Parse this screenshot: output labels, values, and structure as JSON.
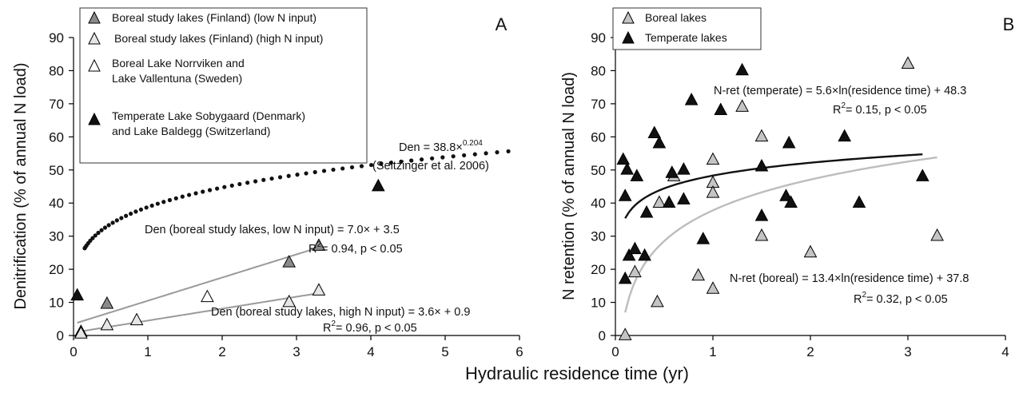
{
  "figure": {
    "shared_xlabel": "Hydraulic residence time (yr)"
  },
  "chart_data": [
    {
      "type": "scatter",
      "panel": "A",
      "ylabel": "Denitrification (% of annual N load)",
      "xlim": [
        0,
        6
      ],
      "ylim": [
        0,
        90
      ],
      "xticks": [
        "0",
        "1",
        "2",
        "3",
        "4",
        "5",
        "6"
      ],
      "yticks": [
        "0",
        "10",
        "20",
        "30",
        "40",
        "50",
        "60",
        "70",
        "80",
        "90"
      ],
      "grid": false,
      "legend_position": "top-left",
      "series": [
        {
          "name": "Boreal study lakes (Finland) (low N input)",
          "marker": "triangle",
          "color": "#8a8a8a",
          "points": [
            [
              0.1,
              1
            ],
            [
              0.45,
              9.5
            ],
            [
              2.9,
              22
            ],
            [
              3.3,
              27
            ]
          ]
        },
        {
          "name": "Boreal study lakes (Finland) (high N input)",
          "marker": "triangle",
          "color": "#e6e6e6",
          "points": [
            [
              0.1,
              0.5
            ],
            [
              0.45,
              3
            ],
            [
              0.85,
              4.5
            ],
            [
              2.9,
              10
            ],
            [
              3.3,
              13.5
            ]
          ]
        },
        {
          "name": "Boreal Lake Norrviken and Lake Vallentuna (Sweden)",
          "marker": "triangle",
          "color": "#ffffff",
          "points": [
            [
              1.8,
              11.5
            ]
          ]
        },
        {
          "name": "Temperate Lake Sobygaard (Denmark) and Lake Baldegg (Switzerland)",
          "marker": "triangle",
          "color": "#111111",
          "points": [
            [
              0.05,
              12
            ],
            [
              4.1,
              45
            ]
          ]
        }
      ],
      "fits": [
        {
          "label": "Den (boreal study lakes, low N input) = 7.0× + 3.5",
          "stats": "= 0.94, p < 0.05",
          "type": "linear",
          "a": 7.0,
          "b": 3.5,
          "xrange": [
            0.05,
            3.3
          ],
          "color": "#9a9a9a"
        },
        {
          "label": "Den (boreal study lakes, high N input) = 3.6× + 0.9",
          "stats": "= 0.96, p < 0.05",
          "type": "linear",
          "a": 3.6,
          "b": 0.9,
          "xrange": [
            0.05,
            3.3
          ],
          "color": "#9a9a9a"
        },
        {
          "label": "Den = 38.8×",
          "exponent": "0.204",
          "citation": "(Seitzinger et al. 2006)",
          "type": "power",
          "a": 38.8,
          "b": 0.204,
          "xrange": [
            0.15,
            5.85
          ],
          "color": "#111111"
        }
      ],
      "r2_prefix": "R",
      "r2_sup": "2"
    },
    {
      "type": "scatter",
      "panel": "B",
      "ylabel": "N retention (% of annual N load)",
      "xlim": [
        0,
        4
      ],
      "ylim": [
        0,
        90
      ],
      "xticks": [
        "0",
        "1",
        "2",
        "3",
        "4"
      ],
      "yticks": [
        "0",
        "10",
        "20",
        "30",
        "40",
        "50",
        "60",
        "70",
        "80",
        "90"
      ],
      "grid": false,
      "legend_position": "top-left",
      "series": [
        {
          "name": "Boreal lakes",
          "marker": "triangle",
          "color": "#c4c4c4",
          "points": [
            [
              0.1,
              0
            ],
            [
              0.2,
              19
            ],
            [
              0.43,
              10
            ],
            [
              0.45,
              40
            ],
            [
              0.6,
              48
            ],
            [
              0.85,
              18
            ],
            [
              1.0,
              53
            ],
            [
              1.0,
              46
            ],
            [
              1.0,
              43
            ],
            [
              1.0,
              14
            ],
            [
              1.3,
              69
            ],
            [
              1.5,
              60
            ],
            [
              1.5,
              30
            ],
            [
              2.0,
              25
            ],
            [
              3.0,
              82
            ],
            [
              3.3,
              30
            ]
          ]
        },
        {
          "name": "Temperate lakes",
          "marker": "triangle",
          "color": "#111111",
          "points": [
            [
              0.08,
              53
            ],
            [
              0.12,
              50
            ],
            [
              0.1,
              42
            ],
            [
              0.22,
              48
            ],
            [
              0.14,
              24
            ],
            [
              0.1,
              17
            ],
            [
              0.2,
              26
            ],
            [
              0.3,
              24
            ],
            [
              0.32,
              37
            ],
            [
              0.4,
              61
            ],
            [
              0.45,
              58
            ],
            [
              0.55,
              40
            ],
            [
              0.58,
              49
            ],
            [
              0.7,
              50
            ],
            [
              0.7,
              41
            ],
            [
              0.78,
              71
            ],
            [
              0.9,
              29
            ],
            [
              1.08,
              68
            ],
            [
              1.3,
              80
            ],
            [
              1.5,
              51
            ],
            [
              1.5,
              36
            ],
            [
              1.75,
              42
            ],
            [
              1.78,
              58
            ],
            [
              1.8,
              40
            ],
            [
              2.35,
              60
            ],
            [
              2.5,
              40
            ],
            [
              3.15,
              48
            ]
          ]
        }
      ],
      "fits": [
        {
          "label": "N-ret (temperate) = 5.6×ln(residence time) + 48.3",
          "stats": "= 0.15, p < 0.05",
          "type": "log",
          "a": 5.6,
          "b": 48.3,
          "xrange": [
            0.1,
            3.15
          ],
          "color": "#111111"
        },
        {
          "label": "N-ret (boreal) = 13.4×ln(residence time) + 37.8",
          "stats": "= 0.32, p < 0.05",
          "type": "log",
          "a": 13.4,
          "b": 37.8,
          "xrange": [
            0.1,
            3.3
          ],
          "color": "#bdbdbd"
        }
      ],
      "r2_prefix": "R",
      "r2_sup": "2"
    }
  ]
}
